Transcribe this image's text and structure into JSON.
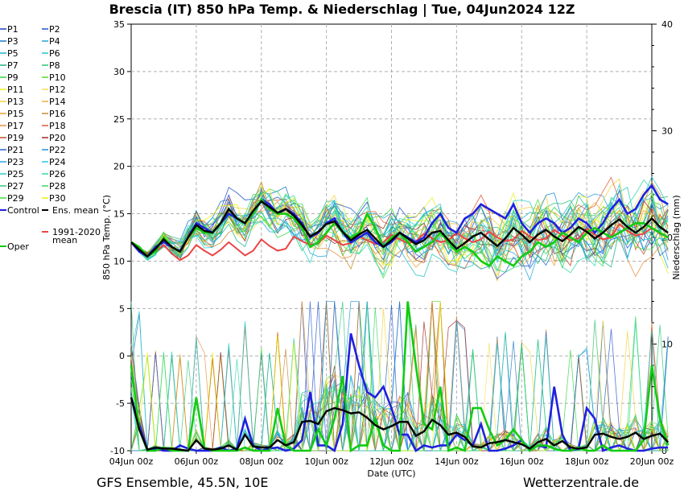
{
  "title": "Brescia  (IT)  850 hPa Temp. & Niederschlag | Tue, 04Jun2024 12Z",
  "footer": {
    "left": "GFS Ensemble, 45.5N, 10E",
    "right": "Wetterzentrale.de"
  },
  "chart_data": {
    "type": "line",
    "xlabel": "Date (UTC)",
    "ylabel": "850 hPa Temp. (°C)",
    "y2label": "Niederschlag (mm)",
    "x_ticks": [
      "04Jun 00z",
      "06Jun 00z",
      "08Jun 00z",
      "10Jun 00z",
      "12Jun 00z",
      "14Jun 00z",
      "16Jun 00z",
      "18Jun 00z",
      "20Jun 00z"
    ],
    "x_start": "04Jun 00z",
    "x_step_hours": 6,
    "ylim": [
      -10,
      35
    ],
    "y_ticks": [
      -10,
      -5,
      0,
      5,
      10,
      15,
      20,
      25,
      30,
      35
    ],
    "y2lim": [
      0,
      40
    ],
    "y2_ticks": [
      0,
      10,
      20,
      30,
      40
    ],
    "grid": true,
    "legend_position": "left",
    "legend": [
      [
        "P1",
        "#1f3fbf"
      ],
      [
        "P2",
        "#2255cc"
      ],
      [
        "P3",
        "#1e78c8"
      ],
      [
        "P4",
        "#27a0d8"
      ],
      [
        "P5",
        "#1fb4c8"
      ],
      [
        "P6",
        "#22c8c0"
      ],
      [
        "P7",
        "#20b48c"
      ],
      [
        "P8",
        "#25c870"
      ],
      [
        "P9",
        "#2ed840"
      ],
      [
        "P10",
        "#55dd20"
      ],
      [
        "P11",
        "#ecec20"
      ],
      [
        "P12",
        "#f0e050"
      ],
      [
        "P13",
        "#f2d23a"
      ],
      [
        "P14",
        "#f0b040"
      ],
      [
        "P15",
        "#eaa030"
      ],
      [
        "P16",
        "#c88a30"
      ],
      [
        "P17",
        "#e89040"
      ],
      [
        "P18",
        "#e05a30"
      ],
      [
        "P19",
        "#c0502c"
      ],
      [
        "P20",
        "#a02828"
      ],
      [
        "P21",
        "#2a60d0"
      ],
      [
        "P22",
        "#2090e0"
      ],
      [
        "P23",
        "#28a8e0"
      ],
      [
        "P24",
        "#20c8e0"
      ],
      [
        "P25",
        "#28d0c8"
      ],
      [
        "P26",
        "#30d8a8"
      ],
      [
        "P27",
        "#30c880"
      ],
      [
        "P28",
        "#38d860"
      ],
      [
        "P29",
        "#40e040"
      ],
      [
        "P30",
        "#f0f000"
      ]
    ],
    "special_legend": {
      "control": "Control",
      "mean": "Ens. mean",
      "clim": "1991-2020\nmean",
      "oper": "Oper"
    },
    "colors": {
      "control": "#2020e0",
      "mean": "#000000",
      "clim": "#ee4444",
      "oper": "#11cc11",
      "grid": "#b0b0b0"
    },
    "series": [
      {
        "name": "Control",
        "values": [
          12,
          11,
          10.5,
          11.5,
          12,
          11.5,
          11,
          12.5,
          14,
          13.5,
          13,
          14,
          15,
          14.5,
          14,
          15,
          16.5,
          16,
          15,
          15.5,
          15,
          14,
          12.5,
          13,
          14,
          14.5,
          13,
          12,
          12.5,
          13,
          12,
          11.5,
          12,
          13,
          12.5,
          12,
          12.5,
          14,
          15,
          13.5,
          13,
          14.5,
          15,
          16,
          15.5,
          15,
          14.5,
          16,
          14,
          13,
          14,
          14.5,
          14,
          13,
          13.5,
          14.5,
          14,
          13,
          14,
          15.5,
          16.5,
          15,
          15.5,
          17,
          18,
          16.5,
          16
        ]
      },
      {
        "name": "Oper",
        "values": [
          12,
          11.5,
          10.5,
          11,
          12.5,
          11.5,
          11,
          12.5,
          13.5,
          13,
          13,
          14,
          15.5,
          14.5,
          14,
          15,
          16.5,
          15.5,
          15,
          15,
          14.5,
          13.5,
          11.5,
          12,
          13,
          14,
          13,
          12.5,
          13,
          15,
          13.5,
          11.5,
          12.5,
          13,
          12,
          11,
          11.5,
          12,
          13,
          12,
          11,
          11.5,
          11,
          10,
          9.5,
          10.5,
          10,
          9.5,
          10.5,
          11,
          12,
          11.5,
          12,
          13,
          12.5,
          12,
          13,
          13.5,
          13,
          12.5,
          13,
          13.5,
          14,
          14,
          13.5,
          13,
          12.5
        ]
      },
      {
        "name": "Ens. mean",
        "values": [
          12,
          11.2,
          10.5,
          11.3,
          12.3,
          11.5,
          11,
          12.5,
          13.8,
          13.2,
          13,
          14,
          15.5,
          14.5,
          14,
          15.3,
          16.3,
          15.7,
          15.1,
          15.5,
          14.8,
          13.8,
          12.6,
          13.1,
          13.9,
          14.2,
          13.1,
          12.2,
          12.8,
          13.3,
          12.4,
          11.5,
          12.2,
          13,
          12.4,
          11.8,
          12.2,
          13,
          13.2,
          12.2,
          11.3,
          11.9,
          12.6,
          13,
          12.3,
          11.6,
          12.4,
          13.5,
          12.8,
          12,
          12.8,
          13.3,
          12.6,
          12.1,
          12.8,
          13.6,
          13.1,
          12.4,
          13,
          13.8,
          14.4,
          13.6,
          13,
          13.6,
          14.5,
          13.6,
          13
        ]
      },
      {
        "name": "1991-2020 mean",
        "values": [
          12,
          11.3,
          10.5,
          11,
          11.7,
          10.8,
          10.1,
          10.6,
          11.7,
          11.1,
          10.6,
          11.2,
          12,
          11.3,
          10.6,
          11.1,
          12.3,
          11.6,
          11.1,
          11.3,
          12.6,
          12.1,
          11.7,
          11.9,
          12.7,
          12.2,
          11.7,
          11.9,
          12.6,
          12.2,
          11.8,
          12,
          12.8,
          12.3,
          11.9,
          12.1,
          12.9,
          12.4,
          12,
          12.2,
          13,
          12.4,
          12,
          12.3,
          13.1,
          12.5,
          12.1,
          12.3,
          13.2,
          12.6,
          12.2,
          12.4,
          13.3,
          12.7,
          12.2,
          12.4,
          13.4,
          12.8,
          12.3,
          12.5,
          13.9,
          13.2,
          12.7,
          12.9,
          13.5,
          12.9,
          12.5
        ]
      }
    ],
    "precip_series": [
      {
        "name": "Control",
        "values": [
          5,
          2.5,
          0,
          0.2,
          0,
          0,
          0.5,
          0.2,
          0,
          0,
          0,
          0.3,
          0,
          0.2,
          3,
          0.5,
          0,
          0.2,
          0.3,
          0,
          0.2,
          1,
          5.5,
          0.5,
          0.5,
          0,
          2.5,
          11,
          8,
          5.5,
          5,
          6,
          4,
          1.5,
          1.5,
          0,
          0.5,
          0.3,
          0.5,
          0.5,
          1.5,
          1,
          0.5,
          2.5,
          0,
          0,
          0.2,
          0.5,
          1,
          0,
          0.5,
          0.3,
          6,
          1.5,
          0,
          0.2,
          4,
          3,
          0,
          0.3,
          0.5,
          0.2,
          0,
          0,
          0.2,
          0.3,
          0.3
        ]
      },
      {
        "name": "Oper",
        "values": [
          8,
          2,
          0,
          0,
          0.3,
          0,
          0,
          0,
          5,
          0.3,
          0,
          0,
          0,
          0,
          0.3,
          0,
          0,
          0,
          4,
          0.5,
          0,
          0,
          0,
          2,
          0.5,
          3,
          7,
          0,
          0.5,
          0.5,
          3,
          0.5,
          0,
          0,
          14,
          8,
          2.5,
          2,
          6,
          0,
          0.3,
          0,
          4,
          4,
          2,
          0.5,
          1,
          2,
          1,
          0,
          0.5,
          0.5,
          0.2,
          0,
          0,
          0.3,
          0,
          0,
          0.5,
          0,
          0,
          0,
          0,
          1,
          8,
          3,
          0.5
        ]
      },
      {
        "name": "Ens. mean",
        "values": [
          5,
          2,
          0.1,
          0.3,
          0.2,
          0.2,
          0.1,
          0,
          1,
          0.2,
          0.1,
          0.2,
          0.5,
          0.1,
          1.5,
          0.4,
          0.3,
          0.3,
          1,
          0.5,
          0.8,
          2.7,
          2.8,
          2.5,
          3.7,
          4,
          3.8,
          3.5,
          3.6,
          3.1,
          2.4,
          2,
          2.3,
          2.7,
          2.7,
          1.4,
          1.8,
          2.9,
          2.4,
          1.5,
          1.7,
          1.3,
          0.4,
          0.3,
          0.7,
          0.8,
          1,
          0.8,
          0.6,
          0.2,
          0.8,
          1.1,
          0.5,
          0.9,
          0.3,
          0.2,
          0.3,
          1.5,
          1.6,
          1.3,
          1.1,
          1.3,
          1.7,
          1.1,
          1.4,
          1.6,
          0.8
        ]
      }
    ]
  }
}
